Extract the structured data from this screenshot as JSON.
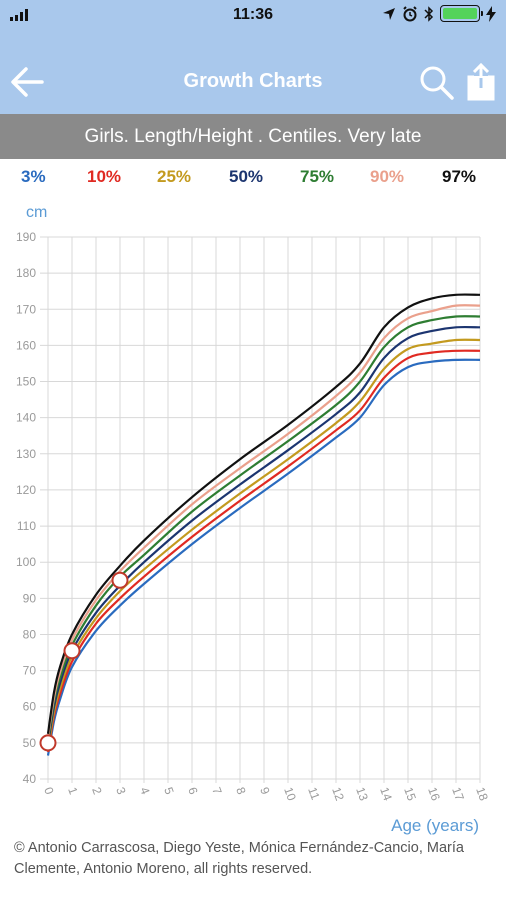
{
  "status": {
    "time": "11:36"
  },
  "nav": {
    "title": "Growth Charts"
  },
  "subtitle": "Girls. Length/Height . Centiles. Very late",
  "legend": [
    {
      "label": "3%",
      "color": "#2a6bbf"
    },
    {
      "label": "10%",
      "color": "#e02a22"
    },
    {
      "label": "25%",
      "color": "#c39a1f"
    },
    {
      "label": "50%",
      "color": "#1c3570"
    },
    {
      "label": "75%",
      "color": "#2e7d32"
    },
    {
      "label": "90%",
      "color": "#eaa08c"
    },
    {
      "label": "97%",
      "color": "#111111"
    }
  ],
  "chart_data": {
    "type": "line",
    "ylabel": "cm",
    "xlabel": "Age (years)",
    "ylim": [
      40,
      190
    ],
    "xlim": [
      0,
      18
    ],
    "yticks": [
      40,
      50,
      60,
      70,
      80,
      90,
      100,
      110,
      120,
      130,
      140,
      150,
      160,
      170,
      180,
      190
    ],
    "xticks": [
      0,
      1,
      2,
      3,
      4,
      5,
      6,
      7,
      8,
      9,
      10,
      11,
      12,
      13,
      14,
      15,
      16,
      17,
      18
    ],
    "grid": true,
    "x": [
      0,
      0.25,
      0.5,
      1,
      2,
      3,
      4,
      6,
      8,
      10,
      12,
      13,
      14,
      15,
      16,
      17,
      18
    ],
    "series": [
      {
        "name": "3%",
        "color": "#2a6bbf",
        "values": [
          46.5,
          56,
          62,
          71,
          81,
          88,
          94,
          105,
          115,
          124.5,
          134.5,
          140,
          149,
          154,
          155.5,
          156,
          156
        ]
      },
      {
        "name": "10%",
        "color": "#e02a22",
        "values": [
          47.5,
          57.5,
          63.5,
          72.5,
          83,
          90,
          96,
          107,
          117,
          126.5,
          136.5,
          142,
          151,
          156.5,
          158,
          158.5,
          158.5
        ]
      },
      {
        "name": "25%",
        "color": "#c39a1f",
        "values": [
          48.5,
          58.5,
          65,
          74,
          84.5,
          92,
          98,
          109,
          119,
          128.5,
          138.5,
          144.5,
          153.5,
          159,
          160.5,
          161.5,
          161.5
        ]
      },
      {
        "name": "50%",
        "color": "#1c3570",
        "values": [
          49.5,
          60,
          66.5,
          75.5,
          86,
          93.5,
          100,
          111.5,
          121.5,
          131,
          141,
          147,
          156.5,
          162,
          164,
          165,
          165
        ]
      },
      {
        "name": "75%",
        "color": "#2e7d32",
        "values": [
          50.5,
          61.5,
          68,
          77,
          88,
          96,
          102,
          114,
          124,
          133.5,
          143.5,
          150,
          159.5,
          165,
          167,
          168,
          168
        ]
      },
      {
        "name": "90%",
        "color": "#eaa08c",
        "values": [
          51.5,
          62.5,
          69.5,
          78.5,
          89.5,
          97.5,
          104,
          116,
          126,
          135.5,
          146,
          152.5,
          162,
          167.5,
          169.5,
          171,
          171
        ]
      },
      {
        "name": "97%",
        "color": "#111111",
        "values": [
          52.5,
          64,
          71,
          80,
          91,
          99,
          106,
          118,
          128.5,
          138,
          148.5,
          155,
          165,
          170.5,
          173,
          174,
          174
        ]
      }
    ],
    "points": [
      {
        "x": 0,
        "y": 50
      },
      {
        "x": 1,
        "y": 75.5
      },
      {
        "x": 3,
        "y": 95
      }
    ]
  },
  "copyright": "© Antonio Carrascosa, Diego Yeste, Mónica Fernández-Cancio, María Clemente, Antonio Moreno, all rights reserved."
}
